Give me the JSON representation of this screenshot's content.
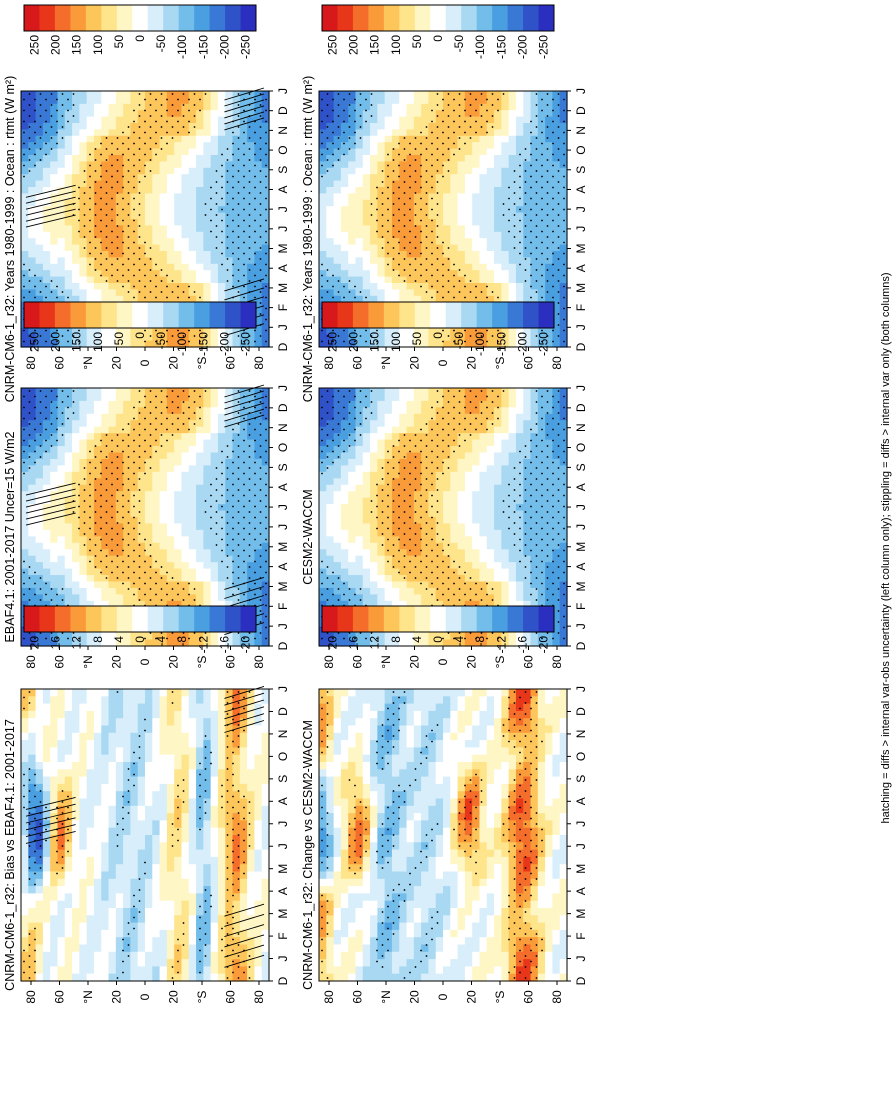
{
  "footer_note": "hatching = diffs > internal var-obs uncertainty (left column only); stippling = diffs > internal var only (both columns)",
  "colors": {
    "warm": [
      "#d7191c",
      "#e8361a",
      "#f46d2a",
      "#fa9b3a",
      "#fdc65a",
      "#fee58c",
      "#fff6c6"
    ],
    "neutral": "#ffffff",
    "cool": [
      "#d8eefa",
      "#a9d8f3",
      "#73bdea",
      "#4a9fe0",
      "#3a78d6",
      "#2f52c9",
      "#2b2fbf"
    ],
    "frame": "#000000"
  },
  "chart_data": [
    {
      "type": "heatmap",
      "panel": "left-top",
      "title": "CNRM-CM6-1_r32: Years 1980-1999 : Ocean : rtmt (W m²)",
      "x_ticks": [
        "D",
        "J",
        "F",
        "M",
        "A",
        "M",
        "J",
        "J",
        "A",
        "S",
        "O",
        "N",
        "D",
        "J"
      ],
      "lat_ticks": [
        "80",
        "60",
        "°N",
        "20",
        "0",
        "20",
        "°S",
        "60",
        "80"
      ],
      "colorbar_ticks": [
        "250",
        "200",
        "150",
        "100",
        "50",
        "0",
        "-50",
        "-100",
        "-150",
        "-200",
        "-250"
      ],
      "z_range": [
        -270,
        270
      ],
      "field": "toa",
      "hatched": true,
      "stippled": true
    },
    {
      "type": "heatmap",
      "panel": "right-top",
      "title": "CNRM-CM6-1_r32: Years 1980-1999 : Ocean : rtmt (W m²)",
      "x_ticks": [
        "D",
        "J",
        "F",
        "M",
        "A",
        "M",
        "J",
        "J",
        "A",
        "S",
        "O",
        "N",
        "D",
        "J"
      ],
      "lat_ticks": [
        "80",
        "60",
        "°N",
        "20",
        "0",
        "20",
        "°S",
        "60",
        "80"
      ],
      "colorbar_ticks": [
        "250",
        "200",
        "150",
        "100",
        "50",
        "0",
        "-50",
        "-100",
        "-150",
        "-200",
        "-250"
      ],
      "z_range": [
        -270,
        270
      ],
      "field": "toa",
      "hatched": false,
      "stippled": true
    },
    {
      "type": "heatmap",
      "panel": "left-middle",
      "title": "EBAF4.1: 2001-2017 Uncer=15 W/m2",
      "x_ticks": [
        "D",
        "J",
        "F",
        "M",
        "A",
        "M",
        "J",
        "J",
        "A",
        "S",
        "O",
        "N",
        "D",
        "J"
      ],
      "lat_ticks": [
        "80",
        "60",
        "°N",
        "20",
        "0",
        "20",
        "°S",
        "60",
        "80"
      ],
      "colorbar_ticks": [
        "250",
        "200",
        "150",
        "100",
        "50",
        "0",
        "-50",
        "-100",
        "-150",
        "-200",
        "-250"
      ],
      "z_range": [
        -270,
        270
      ],
      "field": "toa",
      "hatched": true,
      "stippled": true
    },
    {
      "type": "heatmap",
      "panel": "right-middle",
      "title": "CESM2-WACCM",
      "x_ticks": [
        "D",
        "J",
        "F",
        "M",
        "A",
        "M",
        "J",
        "J",
        "A",
        "S",
        "O",
        "N",
        "D",
        "J"
      ],
      "lat_ticks": [
        "80",
        "60",
        "°N",
        "20",
        "0",
        "20",
        "°S",
        "60",
        "80"
      ],
      "colorbar_ticks": [
        "250",
        "200",
        "150",
        "100",
        "50",
        "0",
        "-50",
        "-100",
        "-150",
        "-200",
        "-250"
      ],
      "z_range": [
        -270,
        270
      ],
      "field": "toa",
      "hatched": false,
      "stippled": true
    },
    {
      "type": "heatmap",
      "panel": "left-bottom",
      "title": "CNRM-CM6-1_r32: Bias vs EBAF4.1: 2001-2017",
      "x_ticks": [
        "D",
        "J",
        "F",
        "M",
        "A",
        "M",
        "J",
        "J",
        "A",
        "S",
        "O",
        "N",
        "D",
        "J"
      ],
      "lat_ticks": [
        "80",
        "60",
        "°N",
        "20",
        "0",
        "20",
        "°S",
        "60",
        "80"
      ],
      "colorbar_ticks": [
        "20",
        "16",
        "12",
        "8",
        "4",
        "0",
        "-4",
        "-8",
        "-12",
        "-16",
        "-20"
      ],
      "z_range": [
        -22,
        22
      ],
      "field": "bias",
      "hatched": true,
      "stippled": true
    },
    {
      "type": "heatmap",
      "panel": "right-bottom",
      "title": "CNRM-CM6-1_r32: Change vs CESM2-WACCM",
      "x_ticks": [
        "D",
        "J",
        "F",
        "M",
        "A",
        "M",
        "J",
        "J",
        "A",
        "S",
        "O",
        "N",
        "D",
        "J"
      ],
      "lat_ticks": [
        "80",
        "60",
        "°N",
        "20",
        "0",
        "20",
        "°S",
        "60",
        "80"
      ],
      "colorbar_ticks": [
        "20",
        "16",
        "12",
        "8",
        "4",
        "0",
        "-4",
        "-8",
        "-12",
        "-16",
        "-20"
      ],
      "z_range": [
        -22,
        22
      ],
      "field": "change",
      "hatched": false,
      "stippled": true
    }
  ]
}
